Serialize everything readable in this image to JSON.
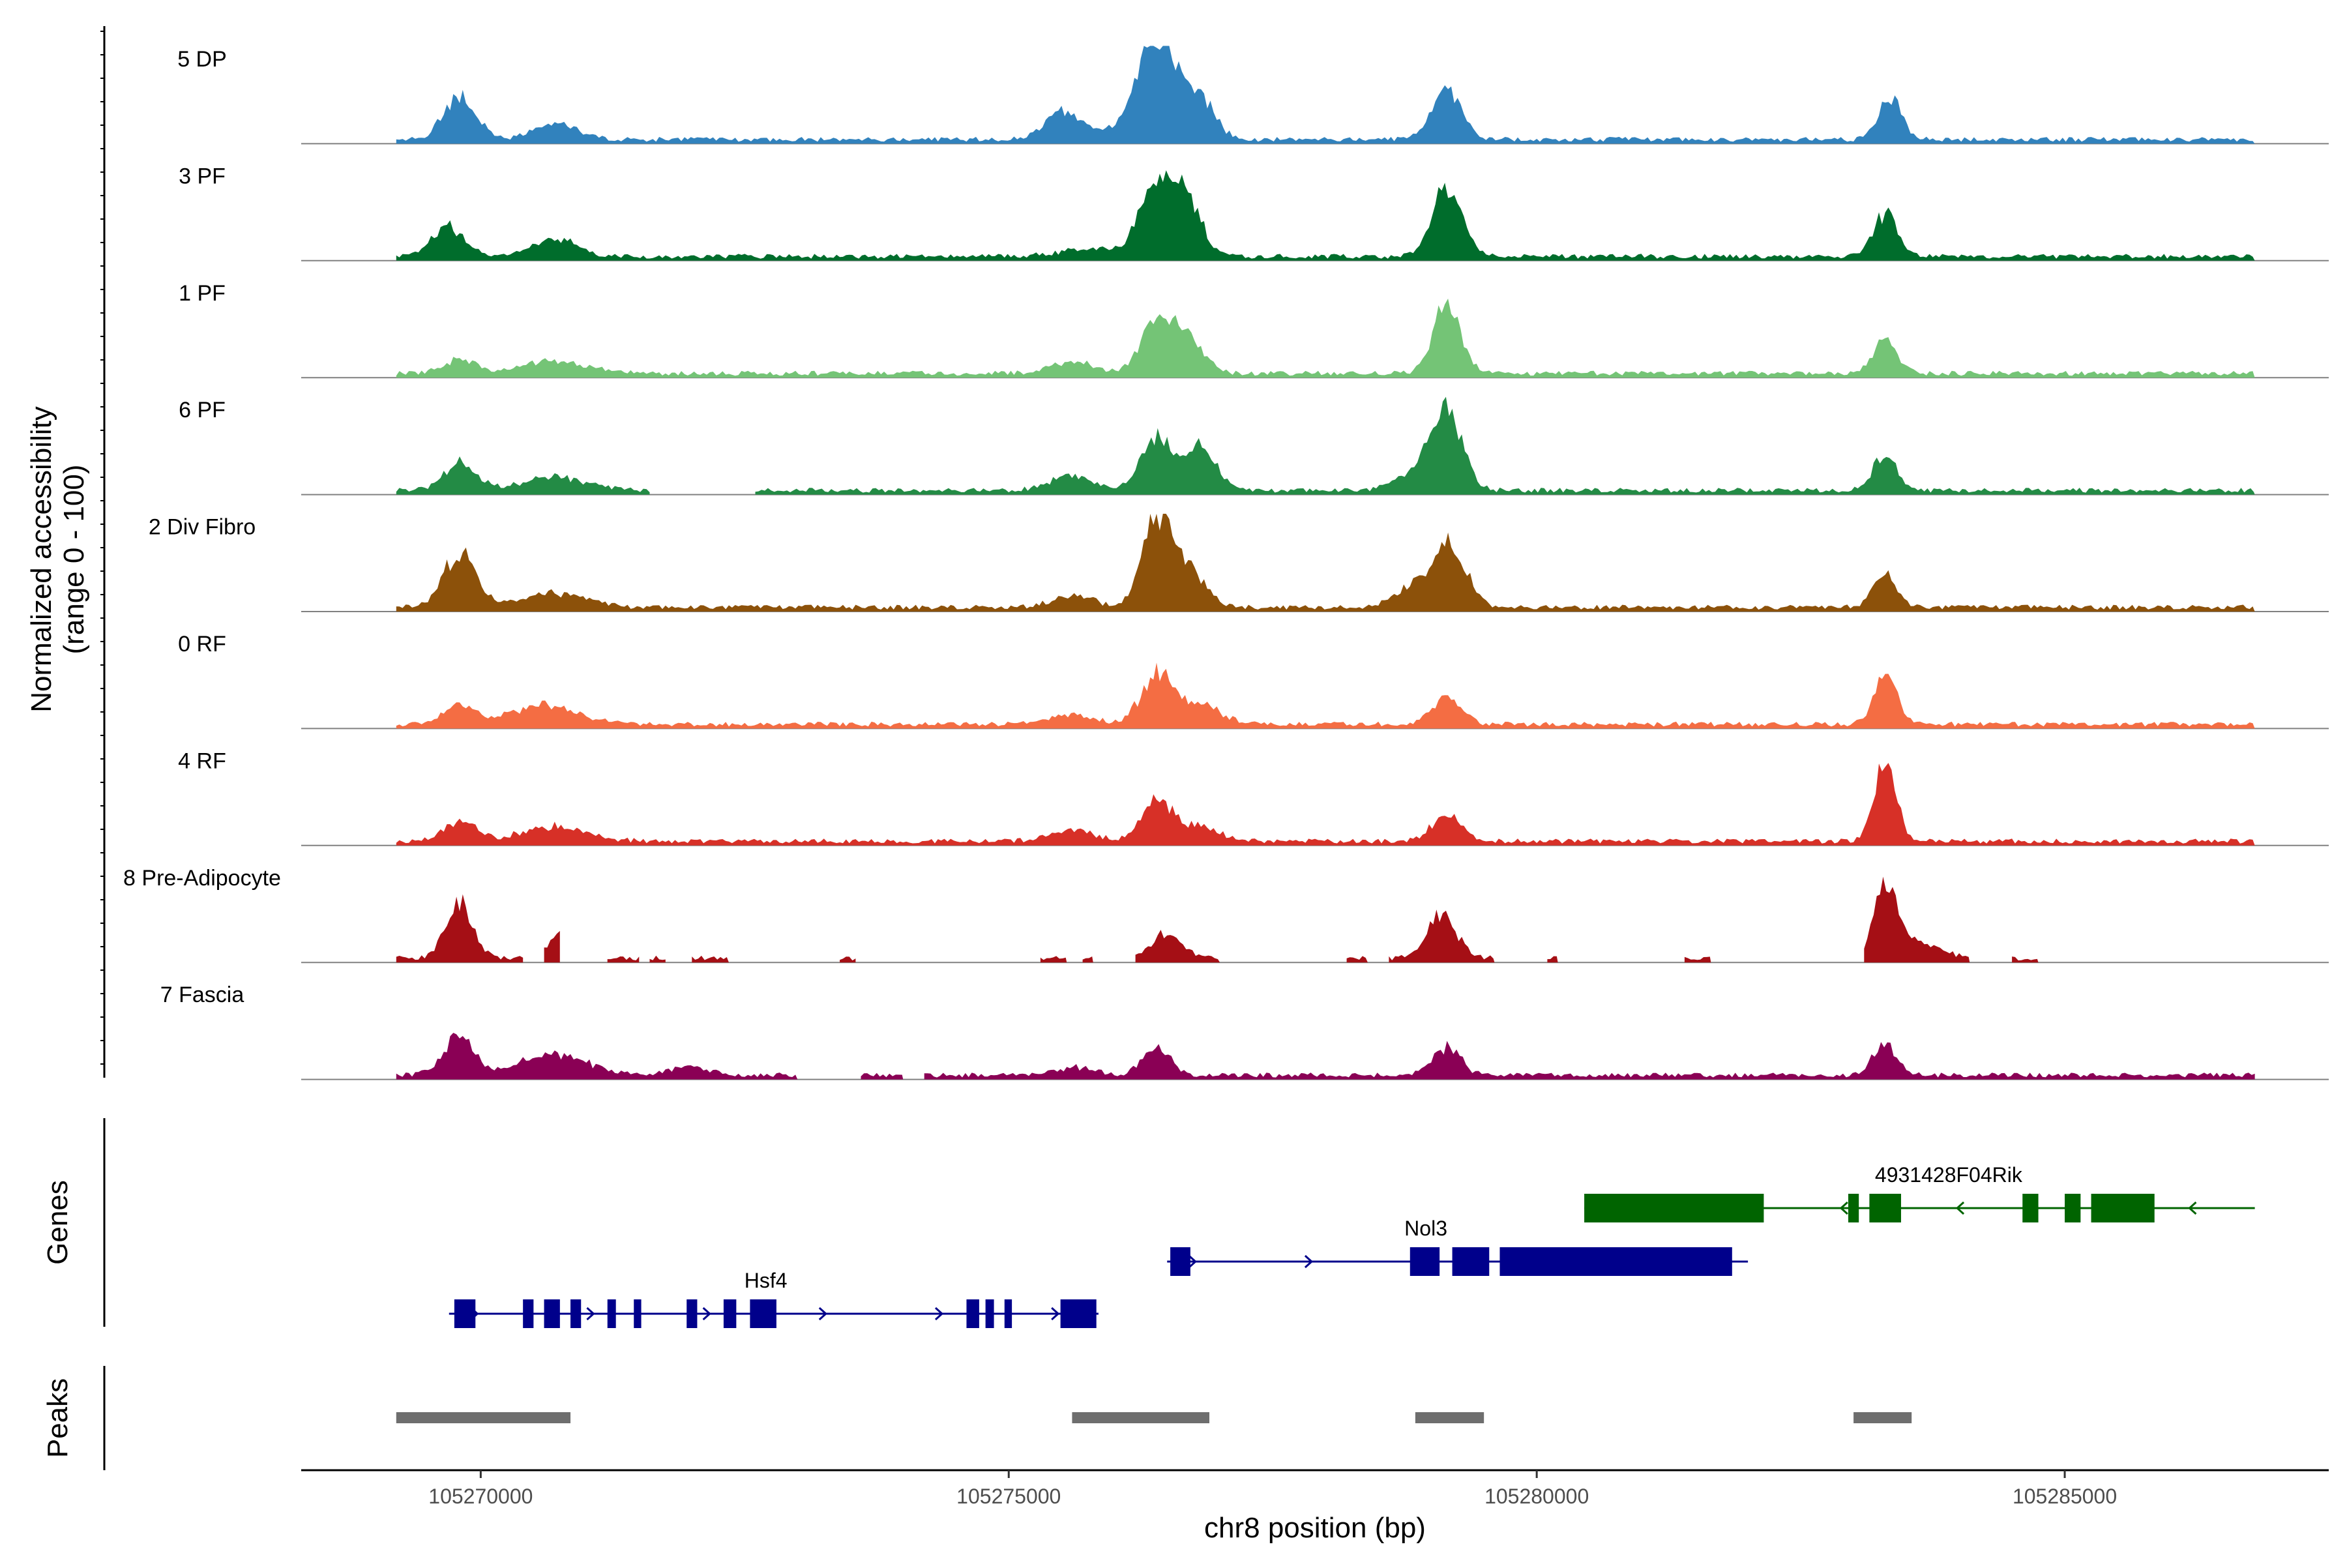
{
  "chart_data": {
    "type": "area",
    "title": "",
    "chromosome": "chr8",
    "xlabel": "chr8 position (bp)",
    "ylabel_line1": "Normalized accessibility",
    "ylabel_line2": "(range 0 - 100)",
    "xlim": [
      105268300,
      105287500
    ],
    "ylim": [
      0,
      100
    ],
    "x_ticks": [
      105270000,
      105275000,
      105280000,
      105285000
    ],
    "x_tick_labels": [
      "105270000",
      "105275000",
      "105280000",
      "105285000"
    ],
    "series": [
      {
        "name": "5 DP",
        "color": "#3182bd",
        "peaks": [
          [
            105269800,
            45,
            150
          ],
          [
            105270700,
            18,
            200
          ],
          [
            105275500,
            25,
            150
          ],
          [
            105276000,
            8,
            400
          ],
          [
            105276400,
            100,
            180
          ],
          [
            105276800,
            40,
            150
          ],
          [
            105279150,
            50,
            140
          ],
          [
            105283350,
            42,
            110
          ]
        ],
        "regions": [
          [
            105269200,
            105286800
          ]
        ]
      },
      {
        "name": "3 PF",
        "color": "#006d2c",
        "peaks": [
          [
            105269700,
            30,
            160
          ],
          [
            105270700,
            18,
            200
          ],
          [
            105275800,
            8,
            300
          ],
          [
            105276400,
            80,
            150
          ],
          [
            105276700,
            55,
            140
          ],
          [
            105279150,
            70,
            140
          ],
          [
            105283300,
            45,
            110
          ]
        ],
        "regions": [
          [
            105269200,
            105286800
          ]
        ]
      },
      {
        "name": "1 PF",
        "color": "#74c476",
        "peaks": [
          [
            105269800,
            15,
            150
          ],
          [
            105270700,
            12,
            300
          ],
          [
            105275600,
            12,
            200
          ],
          [
            105276400,
            55,
            150
          ],
          [
            105276700,
            32,
            150
          ],
          [
            105279150,
            72,
            130
          ],
          [
            105283300,
            35,
            110
          ]
        ],
        "regions": [
          [
            105269200,
            105286800
          ]
        ]
      },
      {
        "name": "6 PF",
        "color": "#238b45",
        "peaks": [
          [
            105269800,
            28,
            150
          ],
          [
            105270700,
            14,
            300
          ],
          [
            105275600,
            15,
            200
          ],
          [
            105276400,
            52,
            150
          ],
          [
            105276800,
            45,
            150
          ],
          [
            105279150,
            78,
            140
          ],
          [
            105278900,
            20,
            200
          ],
          [
            105283300,
            38,
            110
          ]
        ],
        "regions": [
          [
            105269200,
            105271600
          ],
          [
            105272600,
            105286800
          ]
        ]
      },
      {
        "name": "2 Div Fibro",
        "color": "#8c510a",
        "peaks": [
          [
            105269800,
            55,
            150
          ],
          [
            105270700,
            15,
            300
          ],
          [
            105275600,
            12,
            200
          ],
          [
            105276400,
            90,
            140
          ],
          [
            105276700,
            40,
            160
          ],
          [
            105279200,
            55,
            150
          ],
          [
            105278900,
            25,
            200
          ],
          [
            105283300,
            32,
            110
          ]
        ],
        "regions": [
          [
            105269200,
            105286800
          ]
        ]
      },
      {
        "name": "0 RF",
        "color": "#f46d43",
        "peaks": [
          [
            105269800,
            18,
            150
          ],
          [
            105270600,
            20,
            300
          ],
          [
            105275600,
            10,
            200
          ],
          [
            105276400,
            50,
            150
          ],
          [
            105276800,
            20,
            200
          ],
          [
            105279150,
            30,
            130
          ],
          [
            105283300,
            48,
            110
          ]
        ],
        "regions": [
          [
            105269200,
            105286800
          ]
        ]
      },
      {
        "name": "4 RF",
        "color": "#d73027",
        "peaks": [
          [
            105269800,
            20,
            150
          ],
          [
            105270700,
            15,
            300
          ],
          [
            105275600,
            12,
            200
          ],
          [
            105276400,
            38,
            150
          ],
          [
            105276800,
            15,
            200
          ],
          [
            105279150,
            25,
            150
          ],
          [
            105283300,
            90,
            100
          ]
        ],
        "regions": [
          [
            105269200,
            105286800
          ]
        ]
      },
      {
        "name": "8 Pre-Adipocyte",
        "color": "#a50f15",
        "peaks": [
          [
            105269800,
            60,
            120
          ],
          [
            105270800,
            25,
            150
          ],
          [
            105276500,
            25,
            150
          ],
          [
            105279100,
            45,
            140
          ],
          [
            105283300,
            75,
            100
          ],
          [
            105283600,
            18,
            200
          ]
        ],
        "regions": [
          [
            105269200,
            105270400
          ],
          [
            105270600,
            105270750
          ],
          [
            105271200,
            105271500
          ],
          [
            105271600,
            105271750
          ],
          [
            105272000,
            105272350
          ],
          [
            105273400,
            105273550
          ],
          [
            105275300,
            105275550
          ],
          [
            105275700,
            105275800
          ],
          [
            105276200,
            105277000
          ],
          [
            105278200,
            105278400
          ],
          [
            105278600,
            105279600
          ],
          [
            105280100,
            105280200
          ],
          [
            105281400,
            105281650
          ],
          [
            105283100,
            105284100
          ],
          [
            105284500,
            105284750
          ]
        ]
      },
      {
        "name": "7 Fascia",
        "color": "#8a0055",
        "peaks": [
          [
            105269800,
            38,
            150
          ],
          [
            105270700,
            22,
            300
          ],
          [
            105272000,
            8,
            200
          ],
          [
            105275600,
            8,
            200
          ],
          [
            105276400,
            28,
            130
          ],
          [
            105279150,
            28,
            130
          ],
          [
            105283300,
            32,
            110
          ]
        ],
        "regions": [
          [
            105269200,
            105273000
          ],
          [
            105273600,
            105274000
          ],
          [
            105274200,
            105286800
          ]
        ]
      }
    ],
    "genes": [
      {
        "name": "Hsf4",
        "strand": "+",
        "color": "#00008b",
        "start": 105269700,
        "end": 105275850,
        "label_x": 105272700,
        "exons": [
          [
            105269750,
            105269950
          ],
          [
            105270400,
            105270500
          ],
          [
            105270600,
            105270750
          ],
          [
            105270850,
            105270950
          ],
          [
            105271200,
            105271280
          ],
          [
            105271450,
            105271520
          ],
          [
            105271950,
            105272050
          ],
          [
            105272300,
            105272420
          ],
          [
            105272550,
            105272800
          ],
          [
            105274600,
            105274720
          ],
          [
            105274780,
            105274860
          ],
          [
            105274960,
            105275030
          ],
          [
            105275490,
            105275830
          ]
        ]
      },
      {
        "name": "Nol3",
        "strand": "+",
        "color": "#00008b",
        "start": 105276500,
        "end": 105282000,
        "label_x": 105278950,
        "exons": [
          [
            105276530,
            105276720
          ],
          [
            105278800,
            105279080
          ],
          [
            105279200,
            105279550
          ],
          [
            105279650,
            105281850
          ]
        ]
      },
      {
        "name": "4931428F04Rik",
        "strand": "-",
        "color": "#006400",
        "start": 105280450,
        "end": 105286800,
        "label_x": 105283900,
        "exons": [
          [
            105280450,
            105282150
          ],
          [
            105282950,
            105283050
          ],
          [
            105283150,
            105283450
          ],
          [
            105284600,
            105284750
          ],
          [
            105285000,
            105285150
          ],
          [
            105285250,
            105285850
          ]
        ]
      }
    ],
    "peaks_track": [
      [
        105269200,
        105270850
      ],
      [
        105275600,
        105276900
      ],
      [
        105278850,
        105279500
      ],
      [
        105283000,
        105283550
      ]
    ],
    "genes_track_label": "Genes",
    "peaks_track_label": "Peaks"
  }
}
